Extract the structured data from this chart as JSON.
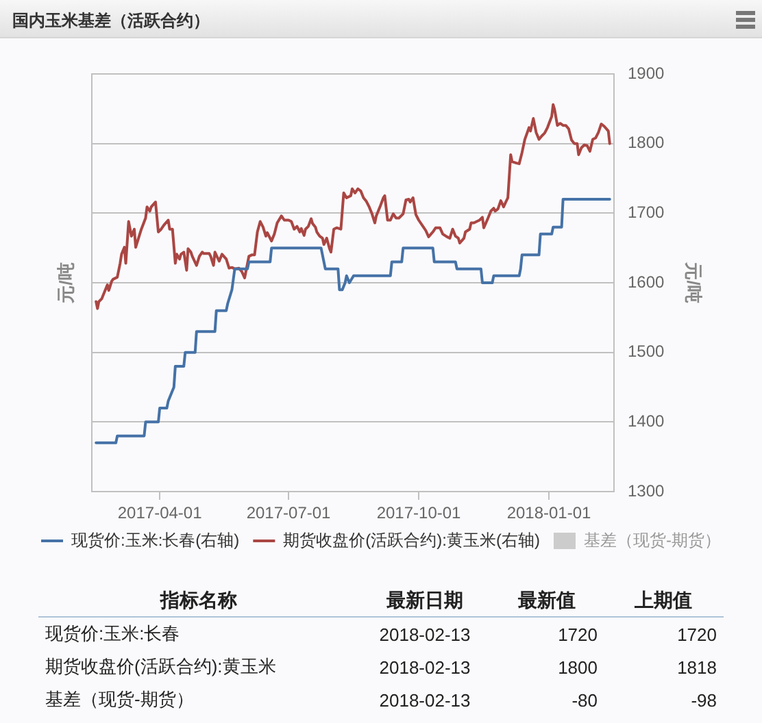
{
  "chart_data": [
    {
      "type": "line",
      "title": "国内玉米基差（活跃合约）",
      "ylabel": "元/吨",
      "y2label": "元/吨",
      "xlim": [
        "2017-02-12",
        "2018-02-16"
      ],
      "xticks": [
        "2017-04-01",
        "2017-07-01",
        "2017-10-01",
        "2018-01-01"
      ],
      "y2lim": [
        1300,
        1900
      ],
      "y2ticks": [
        1300,
        1400,
        1500,
        1600,
        1700,
        1800,
        1900
      ],
      "grid": "y",
      "legend": "bottom",
      "marker": "none",
      "line_style": "solid",
      "series": [
        {
          "name": "现货价:玉米:长春(右轴)",
          "color": "#4572a7",
          "axis": "y2",
          "x": [
            "2017-02-15",
            "2017-03-01",
            "2017-03-02",
            "2017-03-21",
            "2017-03-22",
            "2017-03-31",
            "2017-04-01",
            "2017-04-06",
            "2017-04-07",
            "2017-04-11",
            "2017-04-12",
            "2017-04-18",
            "2017-04-19",
            "2017-04-26",
            "2017-04-27",
            "2017-05-10",
            "2017-05-11",
            "2017-05-18",
            "2017-05-19",
            "2017-05-22",
            "2017-05-24",
            "2017-06-02",
            "2017-06-03",
            "2017-06-18",
            "2017-06-19",
            "2017-07-24",
            "2017-07-25",
            "2017-07-27",
            "2017-08-05",
            "2017-08-06",
            "2017-08-08",
            "2017-08-10",
            "2017-08-11",
            "2017-08-13",
            "2017-08-16",
            "2017-09-11",
            "2017-09-12",
            "2017-09-19",
            "2017-09-20",
            "2017-10-11",
            "2017-10-12",
            "2017-10-27",
            "2017-10-28",
            "2017-11-14",
            "2017-11-15",
            "2017-11-22",
            "2017-11-23",
            "2017-12-11",
            "2017-12-12",
            "2017-12-13",
            "2017-12-25",
            "2017-12-26",
            "2018-01-03",
            "2018-01-04",
            "2018-01-10",
            "2018-01-11",
            "2018-02-13"
          ],
          "values": [
            1370,
            1370,
            1380,
            1380,
            1400,
            1400,
            1420,
            1420,
            1430,
            1450,
            1480,
            1480,
            1500,
            1500,
            1530,
            1530,
            1560,
            1560,
            1570,
            1590,
            1620,
            1620,
            1630,
            1630,
            1650,
            1650,
            1640,
            1620,
            1620,
            1590,
            1590,
            1600,
            1610,
            1600,
            1610,
            1610,
            1630,
            1630,
            1650,
            1650,
            1630,
            1630,
            1620,
            1620,
            1600,
            1600,
            1610,
            1610,
            1620,
            1640,
            1640,
            1670,
            1670,
            1680,
            1680,
            1720,
            1720
          ]
        },
        {
          "name": "期货收盘价(活跃合约):黄玉米(右轴)",
          "color": "#aa4643",
          "axis": "y2",
          "x": [
            "2017-02-15",
            "2017-02-16",
            "2017-02-17",
            "2017-02-19",
            "2017-02-20",
            "2017-02-23",
            "2017-02-24",
            "2017-02-26",
            "2017-02-27",
            "2017-03-02",
            "2017-03-04",
            "2017-03-05",
            "2017-03-07",
            "2017-03-08",
            "2017-03-10",
            "2017-03-12",
            "2017-03-14",
            "2017-03-15",
            "2017-03-17",
            "2017-03-19",
            "2017-03-22",
            "2017-03-23",
            "2017-03-25",
            "2017-03-26",
            "2017-03-29",
            "2017-03-31",
            "2017-04-02",
            "2017-04-04",
            "2017-04-07",
            "2017-04-08",
            "2017-04-10",
            "2017-04-12",
            "2017-04-13",
            "2017-04-15",
            "2017-04-16",
            "2017-04-18",
            "2017-04-20",
            "2017-04-21",
            "2017-04-23",
            "2017-04-24",
            "2017-04-27",
            "2017-04-29",
            "2017-05-01",
            "2017-05-02",
            "2017-05-06",
            "2017-05-07",
            "2017-05-09",
            "2017-05-10",
            "2017-05-13",
            "2017-05-15",
            "2017-05-18",
            "2017-05-20",
            "2017-05-22",
            "2017-05-24",
            "2017-05-27",
            "2017-05-29",
            "2017-05-31",
            "2017-06-03",
            "2017-06-05",
            "2017-06-07",
            "2017-06-09",
            "2017-06-11",
            "2017-06-13",
            "2017-06-15",
            "2017-06-16",
            "2017-06-19",
            "2017-06-21",
            "2017-06-23",
            "2017-06-26",
            "2017-06-28",
            "2017-07-01",
            "2017-07-03",
            "2017-07-05",
            "2017-07-07",
            "2017-07-09",
            "2017-07-10",
            "2017-07-12",
            "2017-07-13",
            "2017-07-15",
            "2017-07-17",
            "2017-07-18",
            "2017-07-20",
            "2017-07-21",
            "2017-07-23",
            "2017-07-25",
            "2017-07-26",
            "2017-07-28",
            "2017-07-30",
            "2017-07-31",
            "2017-08-02",
            "2017-08-04",
            "2017-08-07",
            "2017-08-09",
            "2017-08-11",
            "2017-08-14",
            "2017-08-15",
            "2017-08-17",
            "2017-08-19",
            "2017-08-21",
            "2017-08-23",
            "2017-08-25",
            "2017-08-27",
            "2017-08-29",
            "2017-08-31",
            "2017-09-01",
            "2017-09-03",
            "2017-09-04",
            "2017-09-06",
            "2017-09-07",
            "2017-09-09",
            "2017-09-11",
            "2017-09-13",
            "2017-09-15",
            "2017-09-17",
            "2017-09-20",
            "2017-09-22",
            "2017-09-24",
            "2017-09-25",
            "2017-09-27",
            "2017-09-29",
            "2017-10-01",
            "2017-10-04",
            "2017-10-06",
            "2017-10-08",
            "2017-10-11",
            "2017-10-13",
            "2017-10-16",
            "2017-10-18",
            "2017-10-21",
            "2017-10-23",
            "2017-10-25",
            "2017-10-27",
            "2017-10-29",
            "2017-10-30",
            "2017-11-02",
            "2017-11-03",
            "2017-11-06",
            "2017-11-07",
            "2017-11-09",
            "2017-11-11",
            "2017-11-13",
            "2017-11-15",
            "2017-11-16",
            "2017-11-19",
            "2017-11-21",
            "2017-11-23",
            "2017-11-24",
            "2017-11-26",
            "2017-11-28",
            "2017-11-30",
            "2017-12-02",
            "2017-12-03",
            "2017-12-05",
            "2017-12-06",
            "2017-12-09",
            "2017-12-11",
            "2017-12-13",
            "2017-12-15",
            "2017-12-18",
            "2017-12-19",
            "2017-12-21",
            "2017-12-23",
            "2017-12-25",
            "2017-12-27",
            "2017-12-29",
            "2017-12-31",
            "2018-01-03",
            "2018-01-04",
            "2018-01-05",
            "2018-01-07",
            "2018-01-09",
            "2018-01-11",
            "2018-01-13",
            "2018-01-15",
            "2018-01-17",
            "2018-01-19",
            "2018-01-21",
            "2018-01-22",
            "2018-01-24",
            "2018-01-26",
            "2018-01-28",
            "2018-01-30",
            "2018-02-01",
            "2018-02-03",
            "2018-02-05",
            "2018-02-07",
            "2018-02-09",
            "2018-02-12",
            "2018-02-13"
          ],
          "values": [
            1573,
            1563,
            1573,
            1577,
            1582,
            1597,
            1589,
            1602,
            1605,
            1608,
            1628,
            1641,
            1651,
            1628,
            1688,
            1667,
            1677,
            1651,
            1664,
            1677,
            1693,
            1709,
            1703,
            1709,
            1716,
            1673,
            1677,
            1683,
            1690,
            1677,
            1677,
            1628,
            1641,
            1634,
            1641,
            1644,
            1618,
            1649,
            1644,
            1638,
            1625,
            1638,
            1644,
            1642,
            1642,
            1638,
            1625,
            1644,
            1631,
            1641,
            1634,
            1621,
            1622,
            1620,
            1621,
            1616,
            1607,
            1638,
            1640,
            1640,
            1673,
            1688,
            1680,
            1667,
            1672,
            1660,
            1670,
            1686,
            1696,
            1690,
            1690,
            1688,
            1677,
            1681,
            1673,
            1678,
            1668,
            1677,
            1681,
            1692,
            1685,
            1680,
            1673,
            1667,
            1664,
            1655,
            1664,
            1649,
            1644,
            1677,
            1679,
            1677,
            1729,
            1722,
            1725,
            1735,
            1729,
            1735,
            1732,
            1722,
            1717,
            1709,
            1699,
            1686,
            1696,
            1706,
            1711,
            1722,
            1725,
            1690,
            1690,
            1699,
            1693,
            1693,
            1699,
            1719,
            1720,
            1716,
            1722,
            1698,
            1690,
            1681,
            1675,
            1666,
            1673,
            1679,
            1679,
            1670,
            1666,
            1664,
            1677,
            1667,
            1664,
            1657,
            1664,
            1673,
            1677,
            1686,
            1686,
            1688,
            1690,
            1694,
            1679,
            1693,
            1703,
            1707,
            1703,
            1706,
            1718,
            1709,
            1718,
            1722,
            1784,
            1774,
            1772,
            1771,
            1787,
            1806,
            1823,
            1818,
            1836,
            1816,
            1806,
            1811,
            1815,
            1823,
            1839,
            1856,
            1849,
            1826,
            1829,
            1826,
            1826,
            1821,
            1805,
            1800,
            1800,
            1784,
            1794,
            1798,
            1797,
            1789,
            1806,
            1808,
            1816,
            1828,
            1825,
            1818,
            1800
          ]
        },
        {
          "name": "基差（现货-期货）",
          "type": "area",
          "color": "#cccccc"
        }
      ]
    },
    {
      "type": "other",
      "annotations": [
        "指标名称",
        "最新日期",
        "最新值",
        "上期值",
        "现货价:玉米:长春",
        "2018-02-13",
        "1720",
        "1720",
        "期货收盘价(活跃合约):黄玉米",
        "2018-02-13",
        "1800",
        "1818",
        "基差（现货-期货）",
        "2018-02-13",
        "-80",
        "-98"
      ]
    }
  ]
}
